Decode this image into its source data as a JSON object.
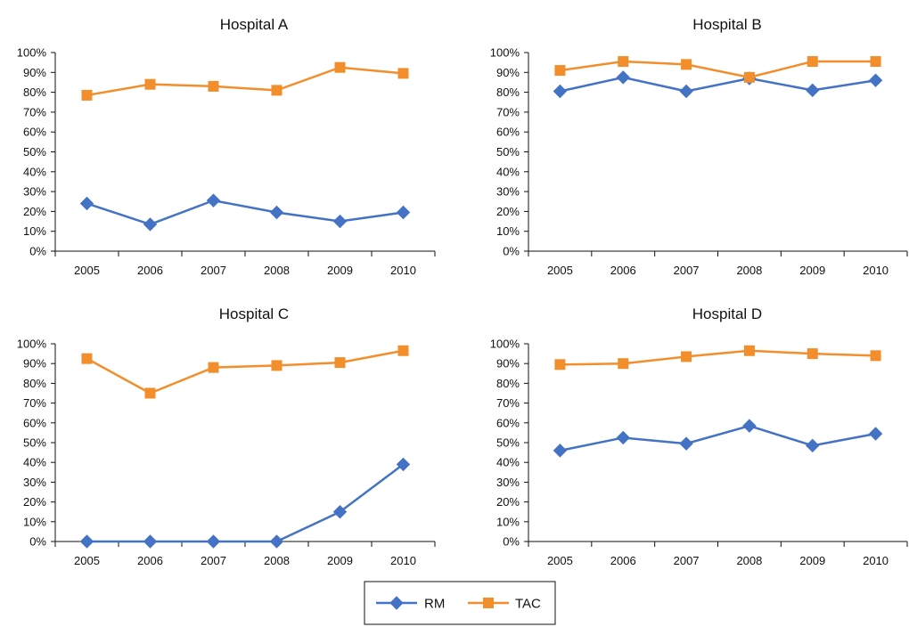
{
  "legend": {
    "series": [
      {
        "name": "RM",
        "color": "#4472C4",
        "marker": "diamond"
      },
      {
        "name": "TAC",
        "color": "#F28E2B",
        "marker": "square"
      }
    ]
  },
  "chart_data": [
    {
      "type": "line",
      "title": "Hospital A",
      "categories": [
        "2005",
        "2006",
        "2007",
        "2008",
        "2009",
        "2010"
      ],
      "ylim": [
        0,
        100
      ],
      "yticks": [
        "0%",
        "10%",
        "20%",
        "30%",
        "40%",
        "50%",
        "60%",
        "70%",
        "80%",
        "90%",
        "100%"
      ],
      "series": [
        {
          "name": "RM",
          "values": [
            24,
            13.5,
            25.5,
            19.5,
            15,
            19.5
          ]
        },
        {
          "name": "TAC",
          "values": [
            78.5,
            84,
            83,
            81,
            92.5,
            89.5
          ]
        }
      ]
    },
    {
      "type": "line",
      "title": "Hospital B",
      "categories": [
        "2005",
        "2006",
        "2007",
        "2008",
        "2009",
        "2010"
      ],
      "ylim": [
        0,
        100
      ],
      "yticks": [
        "0%",
        "10%",
        "20%",
        "30%",
        "40%",
        "50%",
        "60%",
        "70%",
        "80%",
        "90%",
        "100%"
      ],
      "series": [
        {
          "name": "RM",
          "values": [
            80.5,
            87.5,
            80.5,
            87,
            81,
            86
          ]
        },
        {
          "name": "TAC",
          "values": [
            91,
            95.5,
            94,
            87.5,
            95.5,
            95.5
          ]
        }
      ]
    },
    {
      "type": "line",
      "title": "Hospital C",
      "categories": [
        "2005",
        "2006",
        "2007",
        "2008",
        "2009",
        "2010"
      ],
      "ylim": [
        0,
        100
      ],
      "yticks": [
        "0%",
        "10%",
        "20%",
        "30%",
        "40%",
        "50%",
        "60%",
        "70%",
        "80%",
        "90%",
        "100%"
      ],
      "series": [
        {
          "name": "RM",
          "values": [
            0,
            0,
            0,
            0,
            15,
            39
          ]
        },
        {
          "name": "TAC",
          "values": [
            92.5,
            75,
            88,
            89,
            90.5,
            96.5
          ]
        }
      ]
    },
    {
      "type": "line",
      "title": "Hospital D",
      "categories": [
        "2005",
        "2006",
        "2007",
        "2008",
        "2009",
        "2010"
      ],
      "ylim": [
        0,
        100
      ],
      "yticks": [
        "0%",
        "10%",
        "20%",
        "30%",
        "40%",
        "50%",
        "60%",
        "70%",
        "80%",
        "90%",
        "100%"
      ],
      "series": [
        {
          "name": "RM",
          "values": [
            46,
            52.5,
            49.5,
            58.5,
            48.5,
            54.5
          ]
        },
        {
          "name": "TAC",
          "values": [
            89.5,
            90,
            93.5,
            96.5,
            95,
            94
          ]
        }
      ]
    }
  ]
}
